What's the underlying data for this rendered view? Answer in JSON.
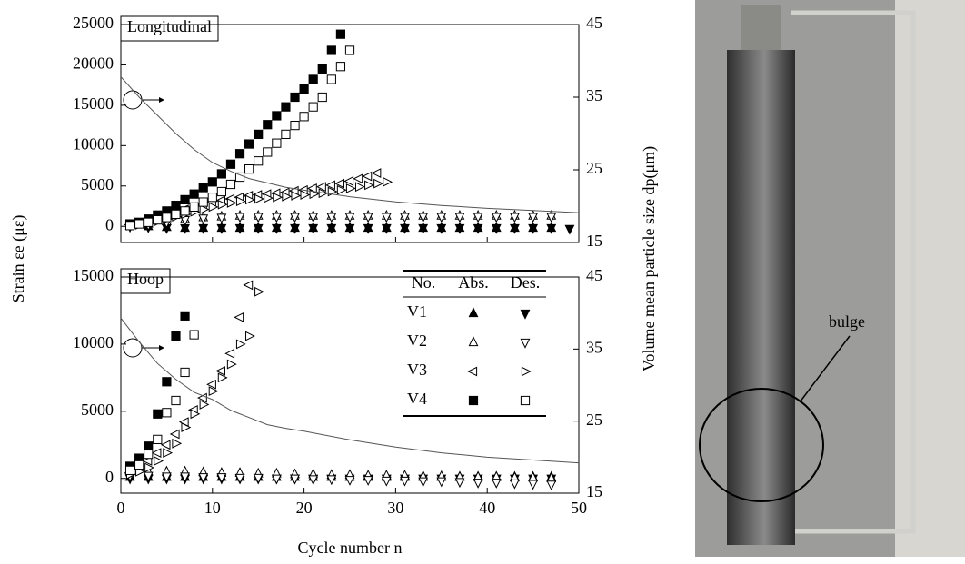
{
  "chart_data": [
    {
      "type": "scatter",
      "title": "Longitudinal",
      "xlim": [
        0,
        50
      ],
      "ylim": [
        -2000,
        25000
      ],
      "yticks": [
        0,
        5000,
        10000,
        15000,
        20000,
        25000
      ],
      "y2lim": [
        15,
        45
      ],
      "y2ticks": [
        15,
        25,
        35,
        45
      ],
      "series": [
        {
          "name": "V1",
          "marker": "tri-up-filled",
          "color": "#000000",
          "x": [
            1,
            3,
            5,
            7,
            9,
            11,
            13,
            15,
            17,
            19,
            21,
            23,
            25,
            27,
            29,
            31,
            33,
            35,
            37,
            39,
            41,
            43,
            45,
            47
          ],
          "values": [
            100,
            0,
            -100,
            -200,
            -200,
            -200,
            -200,
            -200,
            -200,
            -200,
            -200,
            -200,
            -200,
            -200,
            -200,
            -200,
            -200,
            -200,
            -200,
            -200,
            -200,
            -200,
            -200,
            -200
          ]
        },
        {
          "name": "V1",
          "marker": "tri-down-filled",
          "color": "#000000",
          "x": [
            1,
            3,
            5,
            7,
            9,
            11,
            13,
            15,
            17,
            19,
            21,
            23,
            25,
            27,
            29,
            31,
            33,
            35,
            37,
            39,
            41,
            43,
            45,
            47,
            49
          ],
          "values": [
            0,
            -100,
            -200,
            -200,
            -200,
            -200,
            -200,
            -200,
            -200,
            -200,
            -200,
            -200,
            -200,
            -200,
            -200,
            -200,
            -200,
            -200,
            -200,
            -200,
            -200,
            -200,
            -200,
            -200,
            -300
          ]
        },
        {
          "name": "V2",
          "marker": "tri-up-open",
          "color": "#000000",
          "x": [
            1,
            3,
            5,
            7,
            9,
            11,
            13,
            15,
            17,
            19,
            21,
            23,
            25,
            27,
            29,
            31,
            33,
            35,
            37,
            39,
            41,
            43,
            45,
            47
          ],
          "values": [
            100,
            300,
            600,
            900,
            1100,
            1200,
            1300,
            1300,
            1300,
            1300,
            1300,
            1300,
            1300,
            1300,
            1300,
            1300,
            1300,
            1300,
            1300,
            1300,
            1300,
            1300,
            1300,
            1300
          ]
        },
        {
          "name": "V2",
          "marker": "tri-down-open",
          "color": "#000000",
          "x": [
            1,
            3,
            5,
            7,
            9,
            11,
            13,
            15,
            17,
            19,
            21,
            23,
            25,
            27,
            29,
            31,
            33,
            35,
            37,
            39,
            41,
            43,
            45,
            47
          ],
          "values": [
            0,
            200,
            500,
            800,
            1000,
            1100,
            1200,
            1200,
            1200,
            1200,
            1200,
            1200,
            1200,
            1200,
            1200,
            1200,
            1200,
            1200,
            1200,
            1200,
            1200,
            1200,
            1200,
            1200
          ]
        },
        {
          "name": "V3",
          "marker": "tri-left-open",
          "color": "#000000",
          "x": [
            1,
            2,
            3,
            4,
            5,
            6,
            7,
            8,
            9,
            10,
            11,
            12,
            13,
            14,
            15,
            16,
            17,
            18,
            19,
            20,
            21,
            22,
            23,
            24,
            25,
            26,
            27,
            28
          ],
          "values": [
            200,
            400,
            700,
            1000,
            1300,
            1700,
            2100,
            2400,
            2700,
            3000,
            3200,
            3400,
            3600,
            3800,
            3900,
            4000,
            4100,
            4200,
            4400,
            4500,
            4700,
            4900,
            5100,
            5300,
            5600,
            5900,
            6200,
            6600
          ]
        },
        {
          "name": "V3",
          "marker": "tri-right-open",
          "color": "#000000",
          "x": [
            1,
            2,
            3,
            4,
            5,
            6,
            7,
            8,
            9,
            10,
            11,
            12,
            13,
            14,
            15,
            16,
            17,
            18,
            19,
            20,
            21,
            22,
            23,
            24,
            25,
            26,
            27,
            28,
            29
          ],
          "values": [
            100,
            200,
            400,
            600,
            900,
            1200,
            1500,
            1800,
            2100,
            2400,
            2700,
            2900,
            3100,
            3300,
            3400,
            3500,
            3600,
            3700,
            3800,
            3900,
            4000,
            4100,
            4300,
            4500,
            4700,
            4900,
            5100,
            5300,
            5500
          ]
        },
        {
          "name": "V4",
          "marker": "square-filled",
          "color": "#000000",
          "x": [
            1,
            2,
            3,
            4,
            5,
            6,
            7,
            8,
            9,
            10,
            11,
            12,
            13,
            14,
            15,
            16,
            17,
            18,
            19,
            20,
            21,
            22,
            23,
            24
          ],
          "values": [
            300,
            500,
            900,
            1400,
            1900,
            2600,
            3300,
            4000,
            4800,
            5500,
            6500,
            7700,
            9000,
            10200,
            11400,
            12600,
            13700,
            14800,
            16000,
            17000,
            18200,
            19500,
            21800,
            23800
          ]
        },
        {
          "name": "V4",
          "marker": "square-open",
          "color": "#000000",
          "x": [
            1,
            2,
            3,
            4,
            5,
            6,
            7,
            8,
            9,
            10,
            11,
            12,
            13,
            14,
            15,
            16,
            17,
            18,
            19,
            20,
            21,
            22,
            23,
            24,
            25
          ],
          "values": [
            100,
            300,
            500,
            800,
            1100,
            1500,
            1900,
            2400,
            3000,
            3600,
            4300,
            5200,
            6100,
            7100,
            8100,
            9200,
            10300,
            11400,
            12500,
            13600,
            14800,
            16000,
            18200,
            19800,
            21800
          ]
        },
        {
          "type": "line",
          "axis": "y2",
          "color": "#555555",
          "x": [
            0,
            2,
            4,
            6,
            8,
            10,
            12,
            14,
            16,
            18,
            20,
            25,
            30,
            35,
            40,
            45,
            50
          ],
          "values": [
            37.8,
            35,
            32.5,
            30,
            27.8,
            26,
            24.8,
            23.8,
            23.2,
            22.6,
            22.2,
            21.3,
            20.6,
            20.1,
            19.7,
            19.4,
            19.1
          ]
        }
      ]
    },
    {
      "type": "scatter",
      "title": "Hoop",
      "x_label": "Cycle number n",
      "y_label": "Strain εe (με)",
      "y2_label": "Volume mean particle size dp(μm)",
      "xlim": [
        0,
        50
      ],
      "xticks": [
        0,
        10,
        20,
        30,
        40,
        50
      ],
      "ylim": [
        -1100,
        15000
      ],
      "yticks": [
        0,
        5000,
        10000,
        15000
      ],
      "y2lim": [
        15,
        45
      ],
      "y2ticks": [
        15,
        25,
        35,
        45
      ],
      "legend": {
        "headers": [
          "No.",
          "Abs.",
          "Des."
        ]
      },
      "series": [
        {
          "name": "V1",
          "marker": "tri-up-filled",
          "color": "#000000",
          "x": [
            1,
            3,
            5,
            7,
            9,
            11,
            13,
            15,
            17,
            19,
            21,
            23,
            25,
            27,
            29,
            31,
            33,
            35,
            37,
            39,
            41,
            43,
            45,
            47
          ],
          "values": [
            100,
            100,
            100,
            100,
            100,
            100,
            100,
            100,
            100,
            100,
            100,
            100,
            100,
            100,
            100,
            100,
            100,
            100,
            100,
            100,
            100,
            100,
            100,
            100
          ]
        },
        {
          "name": "V1",
          "marker": "tri-down-filled",
          "color": "#000000",
          "x": [
            1,
            3,
            5,
            7,
            9,
            11,
            13,
            15,
            17,
            19,
            21,
            23,
            25,
            27,
            29,
            31,
            33,
            35,
            37,
            39,
            41,
            43,
            45,
            47
          ],
          "values": [
            0,
            0,
            0,
            0,
            0,
            0,
            0,
            0,
            0,
            0,
            0,
            0,
            0,
            0,
            0,
            0,
            0,
            0,
            0,
            0,
            0,
            0,
            0,
            0
          ]
        },
        {
          "name": "V2",
          "marker": "tri-up-open",
          "color": "#000000",
          "x": [
            1,
            3,
            5,
            7,
            9,
            11,
            13,
            15,
            17,
            19,
            21,
            23,
            25,
            27,
            29,
            31,
            33,
            35,
            37,
            39,
            41,
            43,
            45,
            47
          ],
          "values": [
            500,
            500,
            500,
            500,
            450,
            400,
            400,
            350,
            350,
            300,
            300,
            250,
            250,
            200,
            200,
            200,
            150,
            150,
            100,
            100,
            100,
            50,
            50,
            0
          ]
        },
        {
          "name": "V2",
          "marker": "tri-down-open",
          "color": "#000000",
          "x": [
            1,
            3,
            5,
            7,
            9,
            11,
            13,
            15,
            17,
            19,
            21,
            23,
            25,
            27,
            29,
            31,
            33,
            35,
            37,
            39,
            41,
            43,
            45,
            47
          ],
          "values": [
            200,
            200,
            150,
            150,
            100,
            100,
            50,
            50,
            0,
            0,
            -50,
            -50,
            -100,
            -100,
            -150,
            -150,
            -200,
            -200,
            -250,
            -300,
            -300,
            -350,
            -400,
            -450
          ]
        },
        {
          "name": "V3",
          "marker": "tri-left-open",
          "color": "#000000",
          "x": [
            1,
            2,
            3,
            4,
            5,
            6,
            7,
            8,
            9,
            10,
            11,
            12,
            13,
            14
          ],
          "values": [
            400,
            800,
            1300,
            1900,
            2500,
            3300,
            4200,
            5100,
            6000,
            7000,
            8000,
            9300,
            12000,
            14400
          ]
        },
        {
          "name": "V3",
          "marker": "tri-right-open",
          "color": "#000000",
          "x": [
            1,
            2,
            3,
            4,
            5,
            6,
            7,
            8,
            9,
            10,
            11,
            12,
            13,
            14,
            15
          ],
          "values": [
            300,
            500,
            800,
            1300,
            1900,
            2600,
            3800,
            4800,
            5500,
            6500,
            7500,
            8500,
            10000,
            10600,
            13900
          ]
        },
        {
          "name": "V4",
          "marker": "square-filled",
          "color": "#000000",
          "x": [
            1,
            2,
            3,
            4,
            5,
            6,
            7
          ],
          "values": [
            900,
            1500,
            2400,
            4800,
            7200,
            10600,
            12100
          ]
        },
        {
          "name": "V4",
          "marker": "square-open",
          "color": "#000000",
          "x": [
            1,
            2,
            3,
            4,
            5,
            6,
            7,
            8
          ],
          "values": [
            600,
            1000,
            1800,
            2900,
            4900,
            5800,
            7900,
            10700
          ]
        },
        {
          "type": "line",
          "axis": "y2",
          "color": "#555555",
          "x": [
            0,
            2,
            4,
            6,
            8,
            10,
            12,
            14,
            16,
            18,
            20,
            25,
            30,
            35,
            40,
            45,
            50
          ],
          "values": [
            39.3,
            36,
            33,
            30.8,
            29,
            28,
            26.5,
            25.5,
            24.5,
            24,
            23.6,
            22.4,
            21.4,
            20.6,
            20,
            19.6,
            19.2
          ]
        }
      ]
    }
  ],
  "photo": {
    "label": "bulge"
  }
}
